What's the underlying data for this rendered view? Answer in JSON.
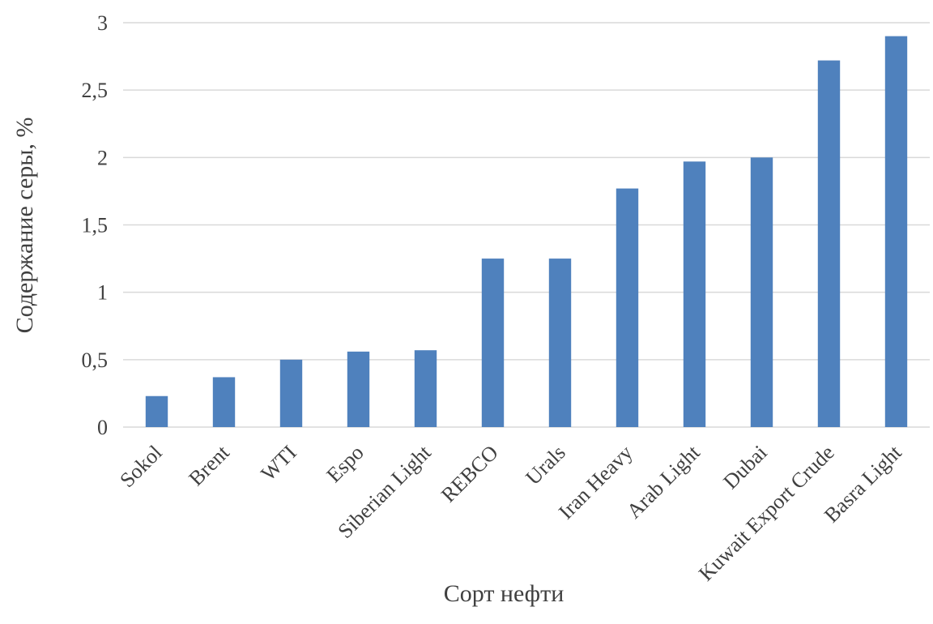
{
  "chart_data": {
    "type": "bar",
    "title": "",
    "xlabel": "Сорт нефти",
    "ylabel": "Содержание серы, %",
    "categories": [
      "Sokol",
      "Brent",
      "WTI",
      "Espo",
      "Siberian Light",
      "REBCO",
      "Urals",
      "Iran Heavy",
      "Arab Light",
      "Dubai",
      "Kuwait Export Crude",
      "Basra Light"
    ],
    "values": [
      0.23,
      0.37,
      0.5,
      0.56,
      0.57,
      1.25,
      1.25,
      1.77,
      1.97,
      2.0,
      2.72,
      2.9
    ],
    "ylim": [
      0,
      3
    ],
    "yticks": [
      "0",
      "0,5",
      "1",
      "1,5",
      "2",
      "2,5",
      "3"
    ],
    "grid": true,
    "legend": "none",
    "bar_color": "#4F81BD",
    "grid_color": "#D9D9D9"
  }
}
